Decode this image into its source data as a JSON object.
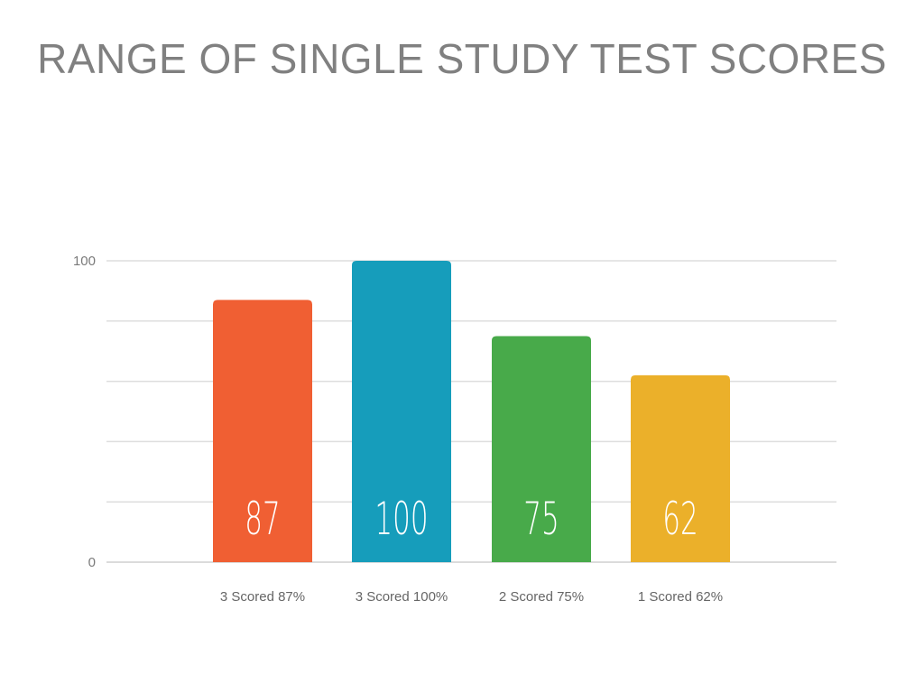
{
  "chart_data": {
    "type": "bar",
    "title": "RANGE OF SINGLE STUDY TEST SCORES",
    "categories": [
      "3 Scored 87%",
      "3 Scored 100%",
      "2 Scored 75%",
      "1 Scored 62%"
    ],
    "values": [
      87,
      100,
      75,
      62
    ],
    "colors": [
      "#f05f33",
      "#169dbb",
      "#48aa4a",
      "#ebb02a"
    ],
    "ylim": [
      0,
      100
    ],
    "yticks_labeled": [
      0,
      100
    ],
    "gridlines": [
      0,
      20,
      40,
      60,
      80,
      100
    ],
    "grid": true,
    "xlabel": "",
    "ylabel": ""
  }
}
